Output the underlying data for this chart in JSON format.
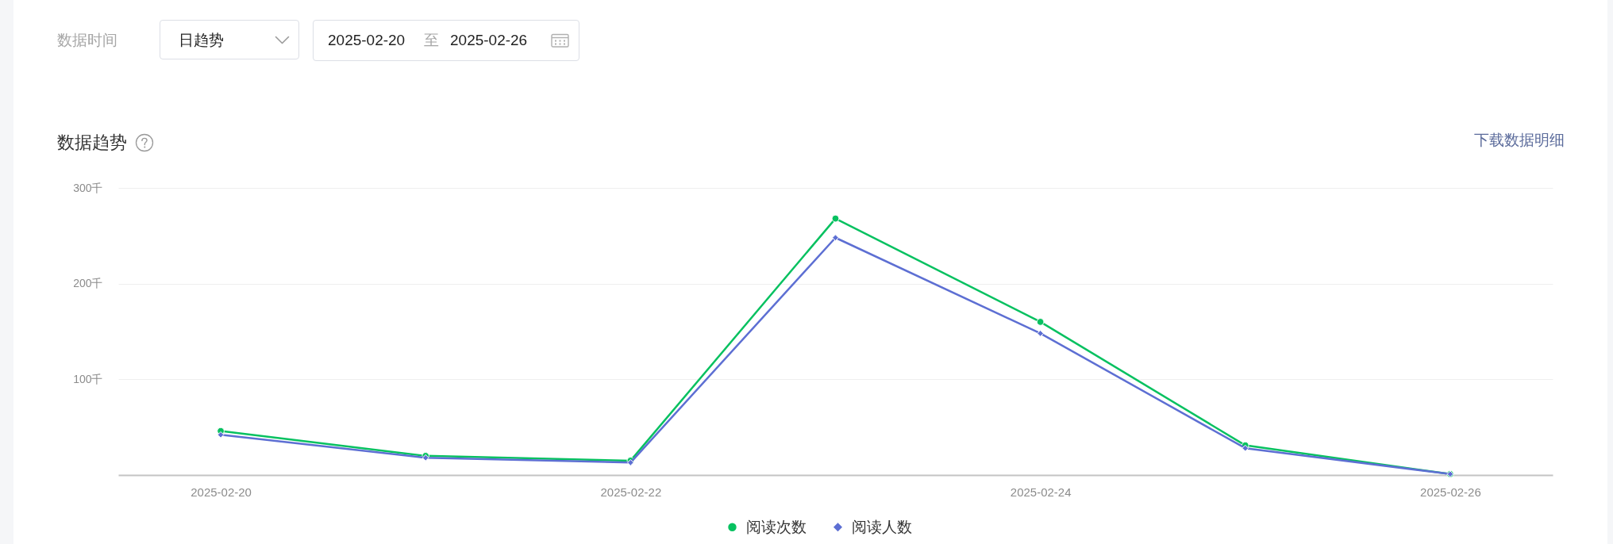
{
  "chart_data": {
    "type": "line",
    "title": "数据趋势",
    "categories": [
      "2025-02-20",
      null,
      "2025-02-22",
      null,
      "2025-02-24",
      null,
      "2025-02-26"
    ],
    "series": [
      {
        "name": "阅读次数",
        "color": "#07c160",
        "marker": "circle",
        "values": [
          46,
          20,
          15,
          268,
          160,
          31,
          1
        ]
      },
      {
        "name": "阅读人数",
        "color": "#5d6fd3",
        "marker": "diamond",
        "values": [
          42,
          18,
          13,
          248,
          148,
          28,
          1
        ]
      }
    ],
    "ylim": [
      0,
      300
    ],
    "yticks": [
      {
        "value": 100,
        "label": "100千"
      },
      {
        "value": 200,
        "label": "200千"
      },
      {
        "value": 300,
        "label": "300千"
      }
    ],
    "grid": "y",
    "legend": "bottom",
    "annotations": [
      "数据时间",
      "日趋势",
      "2025-02-20",
      "至",
      "2025-02-26",
      "下载数据明细"
    ]
  }
}
